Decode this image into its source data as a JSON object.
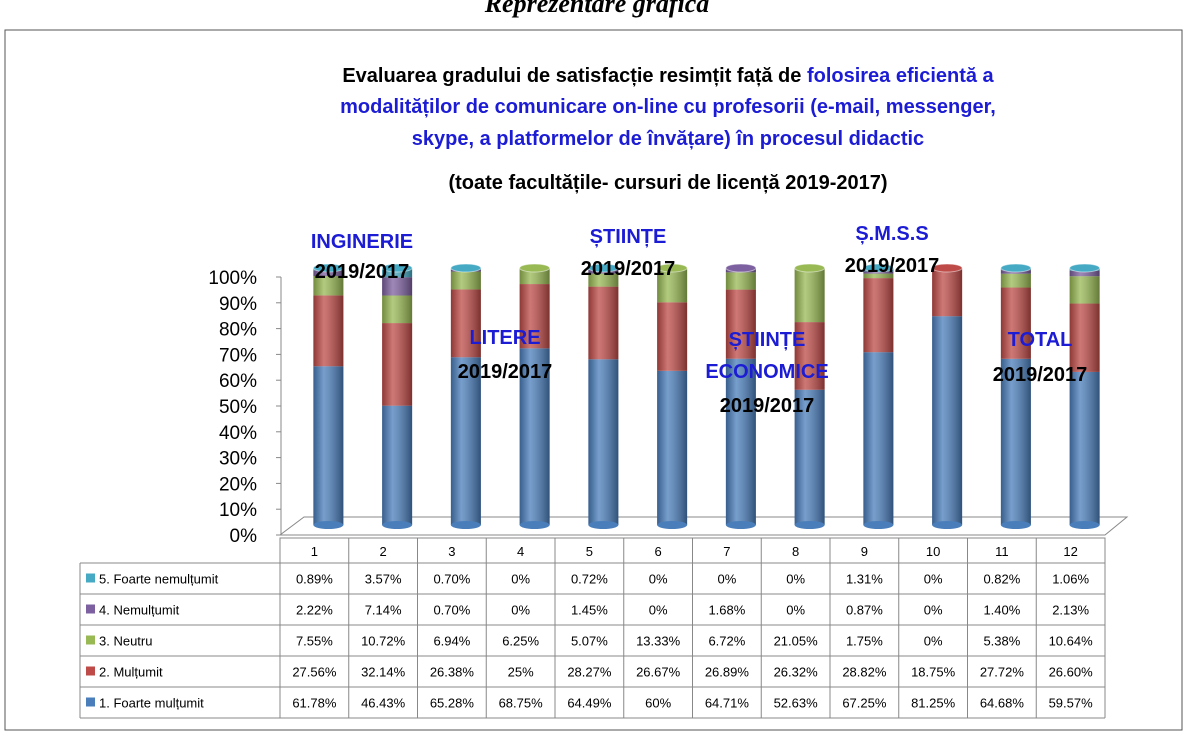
{
  "chart_data": {
    "type": "stacked_bar_3d",
    "header": "Reprezentare grafică",
    "title": [
      [
        {
          "text": "Evaluarea gradului de satisfacție resimțit față de ",
          "color": "#000000"
        },
        {
          "text": "folosirea eficientă a",
          "color": "#1c1cd4"
        }
      ],
      [
        {
          "text": "modalităților de comunicare on-line cu profesorii (e-mail, messenger,",
          "color": "#1c1cd4"
        }
      ],
      [
        {
          "text": "skype, a platformelor de învățare) în procesul didactic",
          "color": "#1c1cd4"
        }
      ]
    ],
    "subtitle": "(toate facultățile- cursuri de licență 2019-2017)",
    "annotations": [
      {
        "name": [
          "INGINERIE"
        ],
        "period": "2019/2017"
      },
      {
        "name": [
          "LITERE"
        ],
        "period": "2019/2017"
      },
      {
        "name": [
          "ȘTIINȚE"
        ],
        "period": "2019/2017"
      },
      {
        "name": [
          "ȘTIINȚE",
          "ECONOMICE"
        ],
        "period": "2019/2017"
      },
      {
        "name": [
          "Ș.M.S.S"
        ],
        "period": "2019/2017"
      },
      {
        "name": [
          "TOTAL"
        ],
        "period": "2019/2017"
      }
    ],
    "categories": [
      "1",
      "2",
      "3",
      "4",
      "5",
      "6",
      "7",
      "8",
      "9",
      "10",
      "11",
      "12"
    ],
    "series": [
      {
        "name": "1. Foarte mulțumit",
        "color": "#4a7ebb",
        "values": [
          61.78,
          46.43,
          65.28,
          68.75,
          64.49,
          60,
          64.71,
          52.63,
          67.25,
          81.25,
          64.68,
          59.57
        ],
        "value_labels": [
          "61.78%",
          "46.43%",
          "65.28%",
          "68.75%",
          "64.49%",
          "60%",
          "64.71%",
          "52.63%",
          "67.25%",
          "81.25%",
          "64.68%",
          "59.57%"
        ]
      },
      {
        "name": "2. Mulțumit",
        "color": "#be4b48",
        "values": [
          27.56,
          32.14,
          26.38,
          25,
          28.27,
          26.67,
          26.89,
          26.32,
          28.82,
          18.75,
          27.72,
          26.6
        ],
        "value_labels": [
          "27.56%",
          "32.14%",
          "26.38%",
          "25%",
          "28.27%",
          "26.67%",
          "26.89%",
          "26.32%",
          "28.82%",
          "18.75%",
          "27.72%",
          "26.60%"
        ]
      },
      {
        "name": "3. Neutru",
        "color": "#98b954",
        "values": [
          7.55,
          10.72,
          6.94,
          6.25,
          5.07,
          13.33,
          6.72,
          21.05,
          1.75,
          0,
          5.38,
          10.64
        ],
        "value_labels": [
          "7.55%",
          "10.72%",
          "6.94%",
          "6.25%",
          "5.07%",
          "13.33%",
          "6.72%",
          "21.05%",
          "1.75%",
          "0%",
          "5.38%",
          "10.64%"
        ]
      },
      {
        "name": "4. Nemulțumit",
        "color": "#7d60a0",
        "values": [
          2.22,
          7.14,
          0.7,
          0,
          1.45,
          0,
          1.68,
          0,
          0.87,
          0,
          1.4,
          2.13
        ],
        "value_labels": [
          "2.22%",
          "7.14%",
          "0.70%",
          "0%",
          "1.45%",
          "0%",
          "1.68%",
          "0%",
          "0.87%",
          "0%",
          "1.40%",
          "2.13%"
        ]
      },
      {
        "name": "5. Foarte nemulțumit",
        "color": "#46aac5",
        "values": [
          0.89,
          3.57,
          0.7,
          0,
          0.72,
          0,
          0,
          0,
          1.31,
          0,
          0.82,
          1.06
        ],
        "value_labels": [
          "0.89%",
          "3.57%",
          "0.70%",
          "0%",
          "0.72%",
          "0%",
          "0%",
          "0%",
          "1.31%",
          "0%",
          "0.82%",
          "1.06%"
        ]
      }
    ],
    "ylim": [
      0,
      100
    ],
    "yticks": [
      {
        "value": 0,
        "label": "0%"
      },
      {
        "value": 10,
        "label": "10%"
      },
      {
        "value": 20,
        "label": "20%"
      },
      {
        "value": 30,
        "label": "30%"
      },
      {
        "value": 40,
        "label": "40%"
      },
      {
        "value": 50,
        "label": "50%"
      },
      {
        "value": 60,
        "label": "60%"
      },
      {
        "value": 70,
        "label": "70%"
      },
      {
        "value": 80,
        "label": "80%"
      },
      {
        "value": 90,
        "label": "90%"
      },
      {
        "value": 100,
        "label": "100%"
      }
    ]
  }
}
